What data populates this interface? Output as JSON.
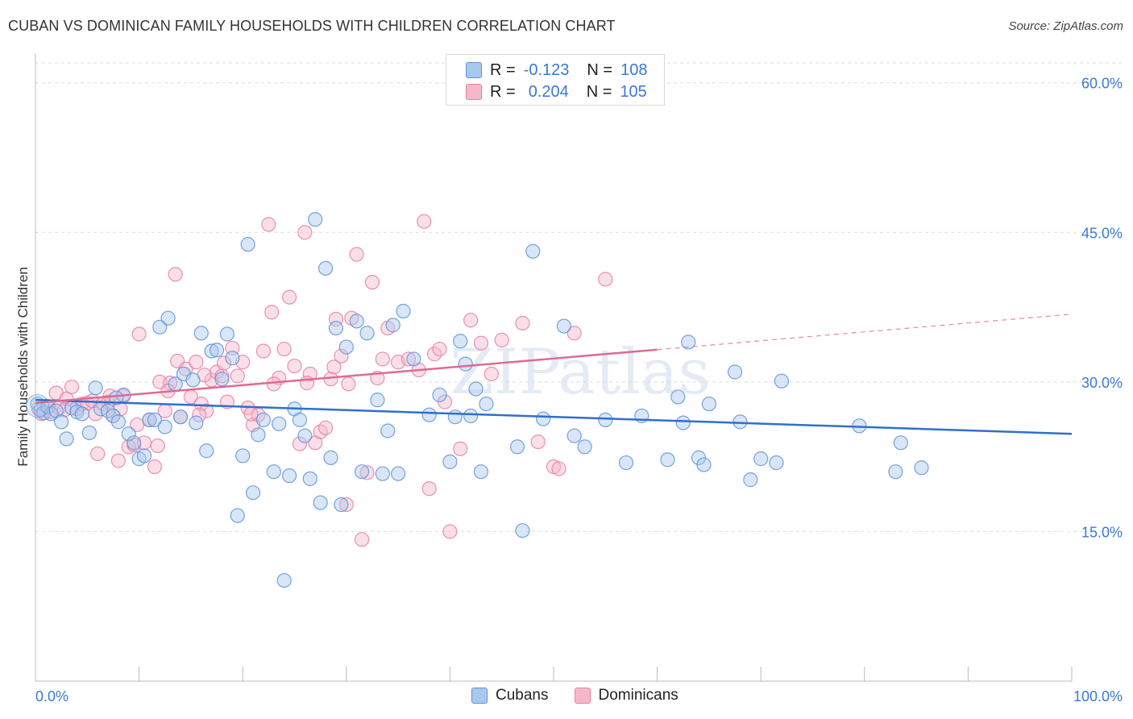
{
  "title": "CUBAN VS DOMINICAN FAMILY HOUSEHOLDS WITH CHILDREN CORRELATION CHART",
  "source": "Source: ZipAtlas.com",
  "watermark": "ZIPatlas",
  "legend": {
    "rows": [
      {
        "r_label": "R =",
        "r_value": "-0.123",
        "n_label": "N =",
        "n_value": "108"
      },
      {
        "r_label": "R =",
        "r_value": "0.204",
        "n_label": "N =",
        "n_value": "105"
      }
    ]
  },
  "colors": {
    "cubans_fill": "#a9c8ef",
    "cubans_stroke": "#5f93d6",
    "cubans_line": "#2f6fce",
    "dominicans_fill": "#f5b8cb",
    "dominicans_stroke": "#e97fa0",
    "dominicans_line": "#e06a92",
    "tick_text": "#3a78d4",
    "grid": "#dddddd"
  },
  "chart_data": {
    "type": "scatter",
    "xlabel": "",
    "ylabel": "Family Households with Children",
    "xlim": [
      0,
      100
    ],
    "ylim": [
      0,
      62
    ],
    "x_tick_labels": [
      "0.0%",
      "100.0%"
    ],
    "y_ticks": [
      15,
      30,
      45,
      60
    ],
    "y_tick_labels": [
      "15.0%",
      "30.0%",
      "45.0%",
      "60.0%"
    ],
    "grid": true,
    "legend_position": "bottom",
    "series": [
      {
        "name": "Cubans",
        "trend": {
          "x": [
            0,
            100
          ],
          "y": [
            28.2,
            24.8
          ],
          "dashed_from": null
        },
        "points": [
          [
            0.2,
            27.8
          ],
          [
            0.5,
            27.2
          ],
          [
            0.8,
            26.9
          ],
          [
            1.2,
            27.5
          ],
          [
            1.5,
            26.8
          ],
          [
            2.0,
            27.1
          ],
          [
            2.5,
            26.0
          ],
          [
            3.0,
            24.3
          ],
          [
            3.5,
            27.4
          ],
          [
            4.0,
            27.0
          ],
          [
            4.5,
            26.8
          ],
          [
            5.2,
            24.9
          ],
          [
            5.8,
            29.4
          ],
          [
            6.3,
            27.3
          ],
          [
            7.0,
            27.1
          ],
          [
            7.5,
            26.6
          ],
          [
            8.0,
            26.0
          ],
          [
            8.5,
            28.7
          ],
          [
            9.0,
            24.8
          ],
          [
            9.5,
            23.9
          ],
          [
            10.0,
            22.3
          ],
          [
            10.5,
            22.6
          ],
          [
            11.0,
            26.2
          ],
          [
            11.5,
            26.2
          ],
          [
            12.0,
            35.5
          ],
          [
            12.5,
            25.5
          ],
          [
            12.8,
            36.4
          ],
          [
            13.5,
            29.8
          ],
          [
            14.0,
            26.5
          ],
          [
            14.3,
            30.8
          ],
          [
            15.2,
            30.2
          ],
          [
            15.5,
            25.9
          ],
          [
            16.0,
            34.9
          ],
          [
            16.5,
            23.1
          ],
          [
            17.0,
            33.1
          ],
          [
            17.5,
            33.2
          ],
          [
            18.0,
            30.3
          ],
          [
            18.5,
            34.8
          ],
          [
            19.0,
            32.4
          ],
          [
            19.5,
            16.6
          ],
          [
            20.0,
            22.6
          ],
          [
            20.5,
            43.8
          ],
          [
            21.0,
            18.9
          ],
          [
            21.5,
            24.7
          ],
          [
            22.0,
            26.2
          ],
          [
            23.0,
            21.0
          ],
          [
            23.5,
            25.8
          ],
          [
            24.0,
            10.1
          ],
          [
            24.5,
            20.6
          ],
          [
            25.0,
            27.3
          ],
          [
            25.5,
            26.2
          ],
          [
            26.0,
            24.6
          ],
          [
            26.5,
            20.3
          ],
          [
            27.0,
            46.3
          ],
          [
            27.5,
            17.9
          ],
          [
            28.0,
            41.4
          ],
          [
            28.5,
            22.4
          ],
          [
            29.0,
            35.4
          ],
          [
            29.5,
            17.7
          ],
          [
            30.0,
            33.5
          ],
          [
            31.0,
            36.1
          ],
          [
            31.5,
            21.0
          ],
          [
            32.0,
            34.9
          ],
          [
            33.0,
            28.2
          ],
          [
            33.5,
            20.8
          ],
          [
            34.0,
            25.1
          ],
          [
            34.5,
            35.7
          ],
          [
            35.0,
            20.8
          ],
          [
            35.5,
            37.1
          ],
          [
            36.5,
            32.3
          ],
          [
            38.0,
            26.7
          ],
          [
            39.0,
            28.7
          ],
          [
            40.0,
            22.0
          ],
          [
            40.5,
            26.5
          ],
          [
            41.0,
            34.1
          ],
          [
            41.5,
            31.8
          ],
          [
            42.0,
            26.6
          ],
          [
            42.5,
            29.3
          ],
          [
            43.0,
            21.0
          ],
          [
            43.5,
            27.8
          ],
          [
            46.5,
            23.5
          ],
          [
            47.0,
            15.1
          ],
          [
            48.0,
            43.1
          ],
          [
            49.0,
            26.3
          ],
          [
            51.0,
            35.6
          ],
          [
            52.0,
            24.6
          ],
          [
            53.0,
            23.5
          ],
          [
            55.0,
            26.2
          ],
          [
            57.0,
            21.9
          ],
          [
            58.5,
            26.6
          ],
          [
            61.0,
            22.2
          ],
          [
            62.0,
            28.5
          ],
          [
            62.5,
            25.9
          ],
          [
            63.0,
            34.0
          ],
          [
            64.0,
            22.4
          ],
          [
            64.5,
            21.7
          ],
          [
            65.0,
            27.8
          ],
          [
            67.5,
            31.0
          ],
          [
            68.0,
            26.0
          ],
          [
            69.0,
            20.2
          ],
          [
            70.0,
            22.3
          ],
          [
            71.5,
            21.9
          ],
          [
            72.0,
            30.1
          ],
          [
            79.5,
            25.6
          ],
          [
            83.0,
            21.0
          ],
          [
            83.5,
            23.9
          ],
          [
            85.5,
            21.4
          ],
          [
            7.8,
            28.4
          ]
        ]
      },
      {
        "name": "Dominicans",
        "trend": {
          "x": [
            0,
            100
          ],
          "y": [
            27.9,
            36.8
          ],
          "dashed_from": 60
        },
        "points": [
          [
            0.3,
            27.3
          ],
          [
            0.6,
            26.8
          ],
          [
            1.0,
            27.6
          ],
          [
            1.5,
            27.0
          ],
          [
            2.0,
            28.9
          ],
          [
            2.3,
            27.4
          ],
          [
            3.0,
            28.3
          ],
          [
            3.5,
            29.5
          ],
          [
            4.0,
            27.3
          ],
          [
            4.5,
            27.8
          ],
          [
            5.0,
            27.9
          ],
          [
            5.5,
            28.1
          ],
          [
            6.0,
            22.8
          ],
          [
            6.5,
            27.8
          ],
          [
            7.0,
            28.0
          ],
          [
            7.5,
            26.6
          ],
          [
            8.0,
            22.1
          ],
          [
            8.5,
            28.6
          ],
          [
            9.0,
            23.5
          ],
          [
            9.5,
            23.7
          ],
          [
            9.8,
            25.7
          ],
          [
            10.0,
            34.8
          ],
          [
            10.5,
            23.9
          ],
          [
            11.0,
            26.2
          ],
          [
            11.5,
            21.5
          ],
          [
            12.0,
            30.0
          ],
          [
            12.5,
            27.1
          ],
          [
            13.0,
            29.9
          ],
          [
            13.5,
            40.8
          ],
          [
            13.7,
            32.1
          ],
          [
            14.0,
            26.5
          ],
          [
            14.5,
            31.3
          ],
          [
            15.0,
            28.5
          ],
          [
            15.5,
            32.0
          ],
          [
            16.0,
            27.8
          ],
          [
            16.5,
            27.1
          ],
          [
            17.0,
            30.2
          ],
          [
            17.5,
            31.0
          ],
          [
            18.0,
            30.6
          ],
          [
            18.5,
            28.0
          ],
          [
            19.0,
            33.4
          ],
          [
            19.5,
            30.6
          ],
          [
            20.0,
            32.0
          ],
          [
            20.5,
            27.4
          ],
          [
            21.0,
            25.7
          ],
          [
            21.5,
            26.7
          ],
          [
            22.0,
            33.1
          ],
          [
            22.5,
            45.8
          ],
          [
            22.8,
            37.0
          ],
          [
            23.5,
            30.4
          ],
          [
            24.0,
            33.3
          ],
          [
            24.5,
            38.5
          ],
          [
            25.0,
            31.6
          ],
          [
            25.5,
            23.8
          ],
          [
            26.0,
            45.0
          ],
          [
            26.5,
            30.8
          ],
          [
            27.0,
            23.9
          ],
          [
            27.5,
            25.0
          ],
          [
            28.0,
            25.4
          ],
          [
            28.5,
            30.3
          ],
          [
            29.0,
            36.3
          ],
          [
            29.5,
            32.6
          ],
          [
            30.0,
            17.7
          ],
          [
            30.5,
            36.4
          ],
          [
            31.0,
            42.8
          ],
          [
            31.5,
            14.2
          ],
          [
            32.0,
            20.9
          ],
          [
            32.5,
            40.0
          ],
          [
            33.0,
            30.4
          ],
          [
            33.5,
            32.3
          ],
          [
            34.0,
            35.4
          ],
          [
            35.0,
            32.0
          ],
          [
            36.0,
            32.3
          ],
          [
            37.0,
            31.2
          ],
          [
            37.5,
            46.1
          ],
          [
            38.0,
            19.3
          ],
          [
            38.5,
            32.8
          ],
          [
            39.5,
            28.0
          ],
          [
            40.0,
            15.0
          ],
          [
            41.0,
            23.3
          ],
          [
            42.0,
            36.2
          ],
          [
            43.0,
            33.9
          ],
          [
            44.0,
            30.8
          ],
          [
            45.0,
            34.2
          ],
          [
            47.0,
            35.9
          ],
          [
            48.5,
            24.0
          ],
          [
            50.0,
            21.5
          ],
          [
            50.5,
            21.3
          ],
          [
            52.0,
            34.9
          ],
          [
            55.0,
            40.3
          ],
          [
            2.8,
            27.2
          ],
          [
            5.8,
            26.8
          ],
          [
            7.2,
            28.6
          ],
          [
            8.2,
            27.3
          ],
          [
            11.8,
            23.6
          ],
          [
            12.8,
            29.1
          ],
          [
            15.8,
            26.7
          ],
          [
            16.3,
            30.7
          ],
          [
            18.2,
            31.9
          ],
          [
            20.8,
            26.8
          ],
          [
            23.0,
            29.8
          ],
          [
            26.2,
            29.9
          ],
          [
            28.8,
            31.5
          ],
          [
            30.2,
            29.8
          ],
          [
            39.0,
            33.3
          ]
        ]
      }
    ]
  }
}
